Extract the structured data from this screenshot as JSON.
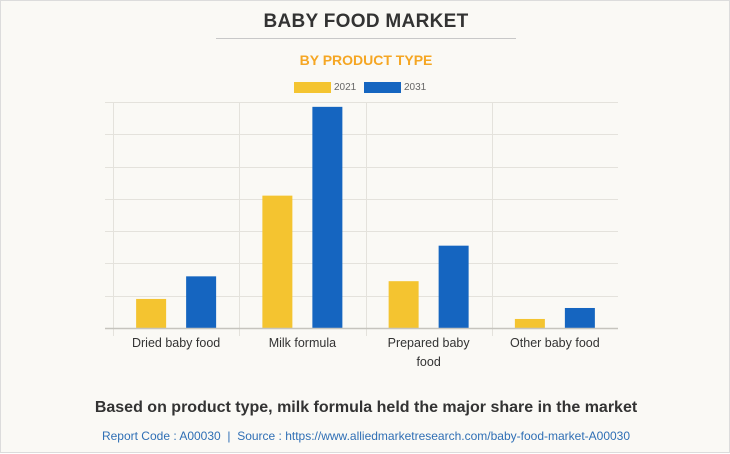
{
  "chart_data": {
    "type": "bar",
    "title": "BABY FOOD MARKET",
    "subtitle": "BY PRODUCT TYPE",
    "categories": [
      [
        "Dried baby food"
      ],
      [
        "Milk formula"
      ],
      [
        "Prepared baby",
        "food"
      ],
      [
        "Other baby food"
      ]
    ],
    "category_names": [
      "Dried baby food",
      "Milk formula",
      "Prepared baby food",
      "Other baby food"
    ],
    "series": [
      {
        "name": "2021",
        "color": "#f4c430",
        "values": [
          0.9,
          4.1,
          1.45,
          0.28
        ]
      },
      {
        "name": "2031",
        "color": "#1565c0",
        "values": [
          1.6,
          6.85,
          2.55,
          0.62
        ]
      }
    ],
    "value_units": "relative (gridline units; no y-axis labels shown)",
    "ylim": [
      0,
      7
    ],
    "grid": true,
    "legend_position": "top-center",
    "xlabel": "",
    "ylabel": ""
  },
  "caption": "Based on product type, milk formula held the major share in the market",
  "source": {
    "report_code": "Report Code : A00030",
    "separator": "|",
    "source_text": "Source : https://www.alliedmarketresearch.com/baby-food-market-A00030"
  }
}
